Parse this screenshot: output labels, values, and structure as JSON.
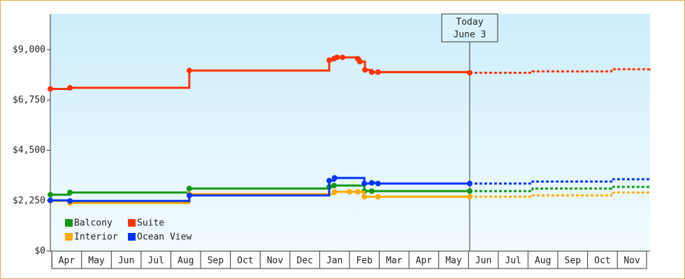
{
  "chart_data": {
    "type": "step-line",
    "annotation": {
      "x": 14.04,
      "lines": [
        "Today",
        "June 3"
      ]
    },
    "xlim": [
      -0.05,
      20.1
    ],
    "xticks": [
      {
        "value": 0,
        "label": "Apr"
      },
      {
        "value": 1,
        "label": "May"
      },
      {
        "value": 2,
        "label": "Jun"
      },
      {
        "value": 3,
        "label": "Jul"
      },
      {
        "value": 4,
        "label": "Aug"
      },
      {
        "value": 5,
        "label": "Sep"
      },
      {
        "value": 6,
        "label": "Oct"
      },
      {
        "value": 7,
        "label": "Nov"
      },
      {
        "value": 8,
        "label": "Dec"
      },
      {
        "value": 9,
        "label": "Jan"
      },
      {
        "value": 10,
        "label": "Feb"
      },
      {
        "value": 11,
        "label": "Mar"
      },
      {
        "value": 12,
        "label": "Apr"
      },
      {
        "value": 13,
        "label": "May"
      },
      {
        "value": 14,
        "label": "Jun"
      },
      {
        "value": 15,
        "label": "Jul"
      },
      {
        "value": 16,
        "label": "Aug"
      },
      {
        "value": 17,
        "label": "Sep"
      },
      {
        "value": 18,
        "label": "Oct"
      },
      {
        "value": 19,
        "label": "Nov"
      }
    ],
    "ylim": [
      0,
      10600
    ],
    "yticks": [
      {
        "value": 0,
        "label": "$0"
      },
      {
        "value": 2250,
        "label": "$2,250"
      },
      {
        "value": 4500,
        "label": "$4,500"
      },
      {
        "value": 6750,
        "label": "$6,750"
      },
      {
        "value": 9000,
        "label": "$9,000"
      }
    ],
    "series": [
      {
        "name": "Balcony",
        "color": "#119911",
        "x": [
          -0.05,
          0.61,
          4.62,
          9.32,
          9.48,
          10.5,
          10.75,
          14.04
        ],
        "values": [
          2520,
          2620,
          2800,
          2870,
          2930,
          2680,
          2680,
          2680
        ],
        "forecast_x": [
          14.04,
          16.15,
          18.8,
          20.09
        ],
        "forecast_values": [
          2680,
          2800,
          2870,
          2900
        ]
      },
      {
        "name": "Suite",
        "color": "#ff3300",
        "x": [
          -0.05,
          0.61,
          4.62,
          9.32,
          9.48,
          9.58,
          9.77,
          10.28,
          10.35,
          10.52,
          10.75,
          10.96,
          14.04
        ],
        "values": [
          7250,
          7300,
          8070,
          8530,
          8600,
          8660,
          8660,
          8600,
          8470,
          8100,
          8000,
          8000,
          7970
        ],
        "forecast_x": [
          14.04,
          16.15,
          18.8,
          20.09
        ],
        "forecast_values": [
          7970,
          8030,
          8130,
          8190
        ]
      },
      {
        "name": "Interior",
        "color": "#ffaa00",
        "x": [
          -0.05,
          0.61,
          4.62,
          9.5,
          10.0,
          10.28,
          10.5,
          10.96,
          14.04
        ],
        "values": [
          2250,
          2150,
          2550,
          2650,
          2650,
          2650,
          2430,
          2430,
          2430
        ],
        "forecast_x": [
          14.04,
          16.15,
          18.8,
          20.09
        ],
        "forecast_values": [
          2430,
          2490,
          2620,
          2650
        ]
      },
      {
        "name": "Ocean View",
        "color": "#0033ff",
        "x": [
          -0.05,
          0.61,
          4.62,
          9.32,
          9.5,
          10.5,
          10.75,
          10.96,
          14.04
        ],
        "values": [
          2270,
          2240,
          2490,
          3150,
          3270,
          3020,
          3050,
          3020,
          3020
        ],
        "forecast_x": [
          14.04,
          16.15,
          18.8,
          20.09
        ],
        "forecast_values": [
          3020,
          3110,
          3210,
          3270
        ]
      }
    ]
  }
}
